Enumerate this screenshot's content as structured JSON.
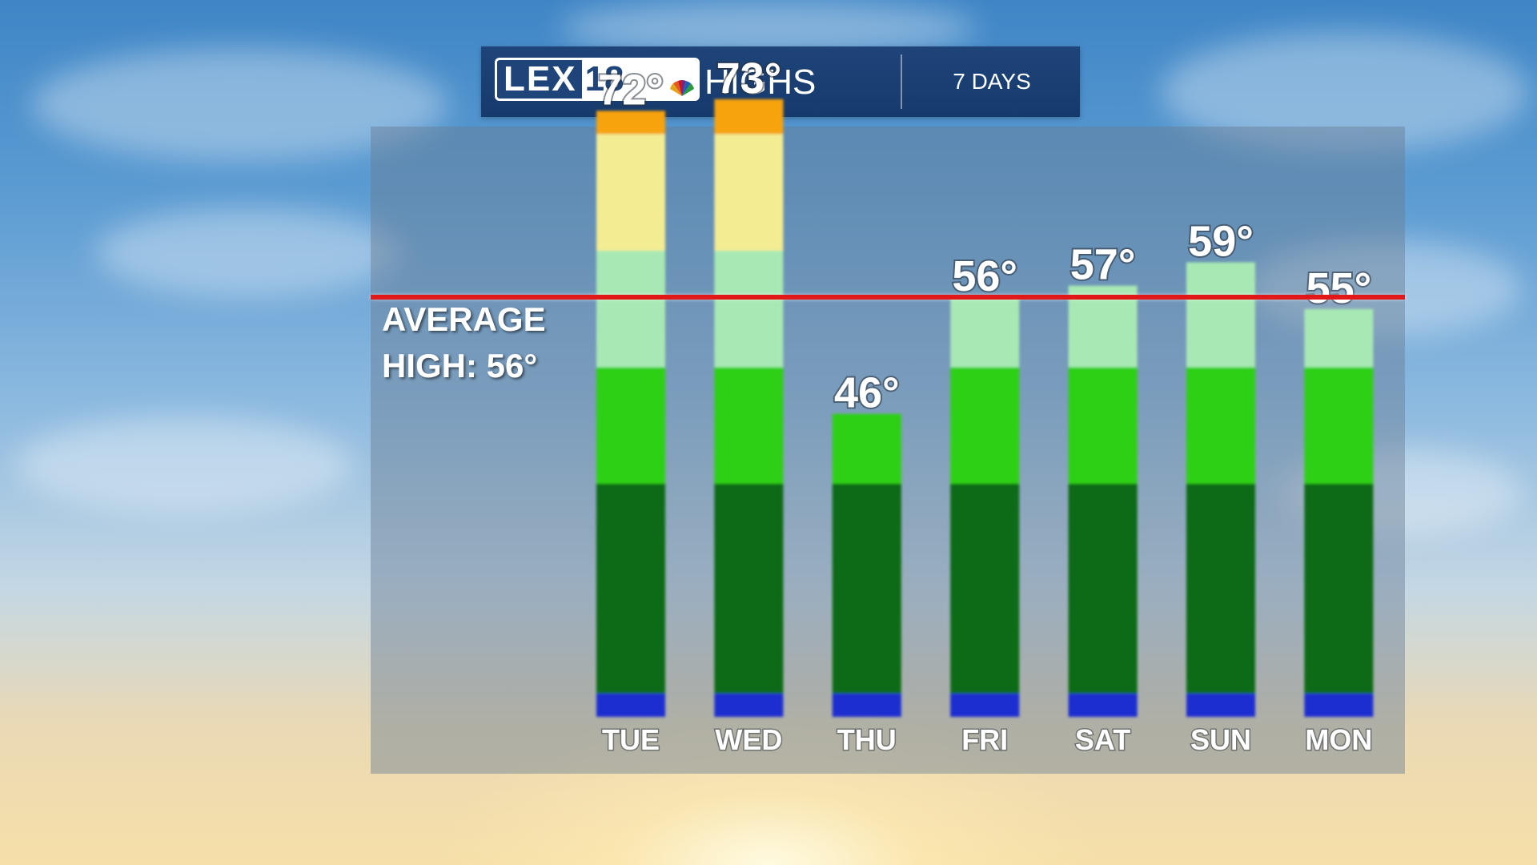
{
  "header": {
    "logo_text_left": "LEX",
    "logo_text_right": "18",
    "title": "HIGHS",
    "subtitle": "7 DAYS"
  },
  "average": {
    "line1": "AVERAGE",
    "line2": "HIGH: 56°",
    "value": 56,
    "line_color": "#e21818"
  },
  "chart_data": {
    "type": "bar",
    "title": "HIGHS",
    "subtitle": "7 DAYS",
    "xlabel": "",
    "ylabel": "",
    "grid": false,
    "legend": "none",
    "categories": [
      "TUE",
      "WED",
      "THU",
      "FRI",
      "SAT",
      "SUN",
      "MON"
    ],
    "values": [
      72,
      73,
      46,
      56,
      57,
      59,
      55
    ],
    "value_labels": [
      "72°",
      "73°",
      "46°",
      "56°",
      "57°",
      "59°",
      "55°"
    ],
    "reference_line": {
      "label": "AVERAGE HIGH: 56°",
      "value": 56
    },
    "ylim": [
      20,
      80
    ],
    "color_bands": [
      {
        "from": 20,
        "to": 22,
        "color": "#1a2fd0"
      },
      {
        "from": 22,
        "to": 40,
        "color": "#0c6a12"
      },
      {
        "from": 40,
        "to": 50,
        "color": "#2ed018"
      },
      {
        "from": 50,
        "to": 60,
        "color": "#a8e8b4"
      },
      {
        "from": 60,
        "to": 70,
        "color": "#f4ec92"
      },
      {
        "from": 70,
        "to": 80,
        "color": "#f7a308"
      }
    ]
  }
}
